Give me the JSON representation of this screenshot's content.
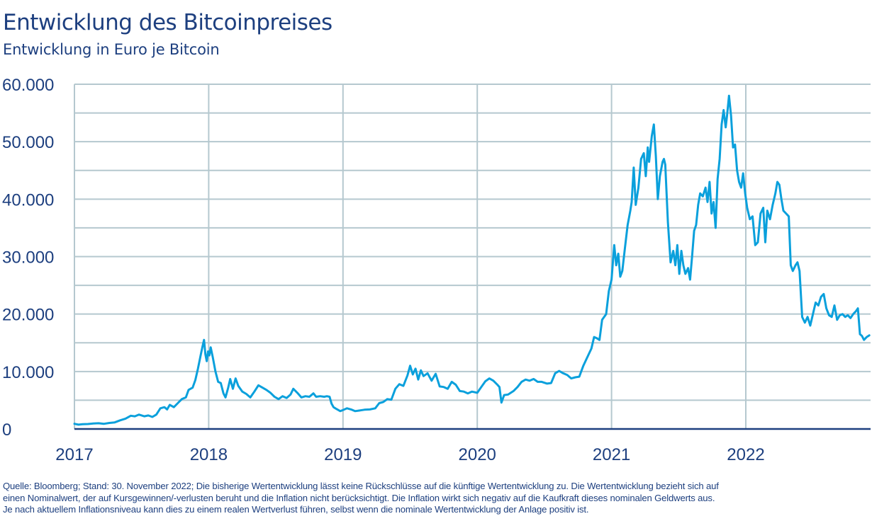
{
  "chart_data": {
    "type": "line",
    "title": "Entwicklung des Bitcoinpreises",
    "subtitle": "Entwicklung in Euro je Bitcoin",
    "xlabel": "",
    "ylabel": "",
    "xlim": [
      2017.0,
      2022.92
    ],
    "ylim": [
      0,
      60000
    ],
    "y_ticks": [
      0,
      10000,
      20000,
      30000,
      40000,
      50000,
      60000
    ],
    "y_tick_labels": [
      "0",
      "10.000",
      "20.000",
      "30.000",
      "40.000",
      "50.000",
      "60.000"
    ],
    "y_gridlines": [
      5000,
      10000,
      15000,
      20000,
      25000,
      30000,
      35000,
      40000,
      45000,
      50000,
      55000,
      60000
    ],
    "x_ticks": [
      2017,
      2018,
      2019,
      2020,
      2021,
      2022
    ],
    "x_tick_labels": [
      "2017",
      "2018",
      "2019",
      "2020",
      "2021",
      "2022"
    ],
    "grid": true,
    "legend": "none",
    "series": [
      {
        "name": "Bitcoin (EUR)",
        "color": "#0aa0dc",
        "points": [
          [
            2017.0,
            900
          ],
          [
            2017.03,
            750
          ],
          [
            2017.06,
            820
          ],
          [
            2017.1,
            860
          ],
          [
            2017.14,
            950
          ],
          [
            2017.18,
            1000
          ],
          [
            2017.22,
            900
          ],
          [
            2017.26,
            1050
          ],
          [
            2017.3,
            1150
          ],
          [
            2017.34,
            1500
          ],
          [
            2017.38,
            1800
          ],
          [
            2017.42,
            2300
          ],
          [
            2017.45,
            2200
          ],
          [
            2017.48,
            2500
          ],
          [
            2017.52,
            2200
          ],
          [
            2017.55,
            2350
          ],
          [
            2017.58,
            2100
          ],
          [
            2017.61,
            2500
          ],
          [
            2017.64,
            3600
          ],
          [
            2017.67,
            3800
          ],
          [
            2017.69,
            3400
          ],
          [
            2017.71,
            4200
          ],
          [
            2017.74,
            3800
          ],
          [
            2017.77,
            4500
          ],
          [
            2017.8,
            5200
          ],
          [
            2017.83,
            5500
          ],
          [
            2017.85,
            6800
          ],
          [
            2017.88,
            7200
          ],
          [
            2017.9,
            8500
          ],
          [
            2017.92,
            10500
          ],
          [
            2017.94,
            12800
          ],
          [
            2017.955,
            14500
          ],
          [
            2017.965,
            15500
          ],
          [
            2017.975,
            13000
          ],
          [
            2017.985,
            11800
          ],
          [
            2017.995,
            13500
          ],
          [
            2018.005,
            12800
          ],
          [
            2018.015,
            14200
          ],
          [
            2018.03,
            12500
          ],
          [
            2018.05,
            10000
          ],
          [
            2018.07,
            8200
          ],
          [
            2018.09,
            8000
          ],
          [
            2018.11,
            6200
          ],
          [
            2018.125,
            5500
          ],
          [
            2018.145,
            7200
          ],
          [
            2018.16,
            8700
          ],
          [
            2018.18,
            7000
          ],
          [
            2018.2,
            8800
          ],
          [
            2018.22,
            7500
          ],
          [
            2018.25,
            6500
          ],
          [
            2018.28,
            6100
          ],
          [
            2018.31,
            5500
          ],
          [
            2018.34,
            6500
          ],
          [
            2018.37,
            7600
          ],
          [
            2018.4,
            7200
          ],
          [
            2018.43,
            6800
          ],
          [
            2018.46,
            6300
          ],
          [
            2018.49,
            5600
          ],
          [
            2018.52,
            5200
          ],
          [
            2018.55,
            5700
          ],
          [
            2018.58,
            5400
          ],
          [
            2018.61,
            6000
          ],
          [
            2018.63,
            7000
          ],
          [
            2018.66,
            6300
          ],
          [
            2018.69,
            5500
          ],
          [
            2018.72,
            5700
          ],
          [
            2018.75,
            5600
          ],
          [
            2018.78,
            6200
          ],
          [
            2018.8,
            5600
          ],
          [
            2018.83,
            5700
          ],
          [
            2018.86,
            5600
          ],
          [
            2018.88,
            5700
          ],
          [
            2018.9,
            5600
          ],
          [
            2018.915,
            4400
          ],
          [
            2018.93,
            3800
          ],
          [
            2018.95,
            3500
          ],
          [
            2018.98,
            3100
          ],
          [
            2019.0,
            3300
          ],
          [
            2019.03,
            3600
          ],
          [
            2019.06,
            3400
          ],
          [
            2019.09,
            3100
          ],
          [
            2019.12,
            3200
          ],
          [
            2019.16,
            3350
          ],
          [
            2019.2,
            3400
          ],
          [
            2019.24,
            3600
          ],
          [
            2019.27,
            4500
          ],
          [
            2019.3,
            4700
          ],
          [
            2019.33,
            5200
          ],
          [
            2019.36,
            5100
          ],
          [
            2019.39,
            7000
          ],
          [
            2019.42,
            7800
          ],
          [
            2019.45,
            7500
          ],
          [
            2019.48,
            9300
          ],
          [
            2019.5,
            11000
          ],
          [
            2019.52,
            9500
          ],
          [
            2019.54,
            10500
          ],
          [
            2019.56,
            8600
          ],
          [
            2019.58,
            10200
          ],
          [
            2019.6,
            9200
          ],
          [
            2019.63,
            9700
          ],
          [
            2019.66,
            8400
          ],
          [
            2019.69,
            9600
          ],
          [
            2019.72,
            7400
          ],
          [
            2019.75,
            7300
          ],
          [
            2019.78,
            7000
          ],
          [
            2019.81,
            8200
          ],
          [
            2019.84,
            7700
          ],
          [
            2019.87,
            6600
          ],
          [
            2019.9,
            6500
          ],
          [
            2019.93,
            6200
          ],
          [
            2019.96,
            6500
          ],
          [
            2020.0,
            6300
          ],
          [
            2020.03,
            7300
          ],
          [
            2020.06,
            8300
          ],
          [
            2020.09,
            8800
          ],
          [
            2020.12,
            8400
          ],
          [
            2020.15,
            7700
          ],
          [
            2020.165,
            7300
          ],
          [
            2020.18,
            4600
          ],
          [
            2020.2,
            5900
          ],
          [
            2020.23,
            6000
          ],
          [
            2020.27,
            6600
          ],
          [
            2020.3,
            7300
          ],
          [
            2020.33,
            8200
          ],
          [
            2020.36,
            8600
          ],
          [
            2020.39,
            8400
          ],
          [
            2020.42,
            8700
          ],
          [
            2020.45,
            8200
          ],
          [
            2020.48,
            8200
          ],
          [
            2020.52,
            7900
          ],
          [
            2020.55,
            8000
          ],
          [
            2020.58,
            9700
          ],
          [
            2020.61,
            10100
          ],
          [
            2020.64,
            9700
          ],
          [
            2020.67,
            9400
          ],
          [
            2020.7,
            8800
          ],
          [
            2020.73,
            9000
          ],
          [
            2020.76,
            9100
          ],
          [
            2020.79,
            11000
          ],
          [
            2020.82,
            12500
          ],
          [
            2020.85,
            14000
          ],
          [
            2020.87,
            16000
          ],
          [
            2020.89,
            15800
          ],
          [
            2020.91,
            15500
          ],
          [
            2020.93,
            19000
          ],
          [
            2020.96,
            20000
          ],
          [
            2020.98,
            24000
          ],
          [
            2021.0,
            26000
          ],
          [
            2021.02,
            32000
          ],
          [
            2021.035,
            28500
          ],
          [
            2021.05,
            30500
          ],
          [
            2021.065,
            26500
          ],
          [
            2021.08,
            27500
          ],
          [
            2021.1,
            31500
          ],
          [
            2021.12,
            35500
          ],
          [
            2021.14,
            38000
          ],
          [
            2021.15,
            39500
          ],
          [
            2021.165,
            45500
          ],
          [
            2021.18,
            39000
          ],
          [
            2021.2,
            42000
          ],
          [
            2021.22,
            47000
          ],
          [
            2021.24,
            48000
          ],
          [
            2021.255,
            44000
          ],
          [
            2021.27,
            49000
          ],
          [
            2021.28,
            46500
          ],
          [
            2021.3,
            51000
          ],
          [
            2021.315,
            53000
          ],
          [
            2021.33,
            47500
          ],
          [
            2021.345,
            40000
          ],
          [
            2021.36,
            44000
          ],
          [
            2021.38,
            46500
          ],
          [
            2021.39,
            47000
          ],
          [
            2021.4,
            46000
          ],
          [
            2021.42,
            36000
          ],
          [
            2021.44,
            29000
          ],
          [
            2021.46,
            31000
          ],
          [
            2021.475,
            28500
          ],
          [
            2021.49,
            32000
          ],
          [
            2021.505,
            27000
          ],
          [
            2021.52,
            31000
          ],
          [
            2021.535,
            28500
          ],
          [
            2021.55,
            27000
          ],
          [
            2021.57,
            28000
          ],
          [
            2021.585,
            26000
          ],
          [
            2021.6,
            30000
          ],
          [
            2021.615,
            34500
          ],
          [
            2021.63,
            35500
          ],
          [
            2021.645,
            39000
          ],
          [
            2021.66,
            41000
          ],
          [
            2021.68,
            40500
          ],
          [
            2021.7,
            42000
          ],
          [
            2021.715,
            39500
          ],
          [
            2021.73,
            43000
          ],
          [
            2021.745,
            37500
          ],
          [
            2021.76,
            39500
          ],
          [
            2021.775,
            35000
          ],
          [
            2021.79,
            43500
          ],
          [
            2021.805,
            47000
          ],
          [
            2021.82,
            53000
          ],
          [
            2021.835,
            55500
          ],
          [
            2021.85,
            52500
          ],
          [
            2021.86,
            54500
          ],
          [
            2021.875,
            58000
          ],
          [
            2021.89,
            54500
          ],
          [
            2021.905,
            49000
          ],
          [
            2021.92,
            49500
          ],
          [
            2021.935,
            45000
          ],
          [
            2021.95,
            43000
          ],
          [
            2021.965,
            42000
          ],
          [
            2021.98,
            44500
          ],
          [
            2021.995,
            41000
          ],
          [
            2022.01,
            38500
          ],
          [
            2022.03,
            36500
          ],
          [
            2022.05,
            37000
          ],
          [
            2022.07,
            32000
          ],
          [
            2022.09,
            32500
          ],
          [
            2022.11,
            37500
          ],
          [
            2022.13,
            38500
          ],
          [
            2022.145,
            32500
          ],
          [
            2022.16,
            38000
          ],
          [
            2022.18,
            36500
          ],
          [
            2022.2,
            39000
          ],
          [
            2022.22,
            41000
          ],
          [
            2022.235,
            43000
          ],
          [
            2022.25,
            42500
          ],
          [
            2022.265,
            40000
          ],
          [
            2022.28,
            38000
          ],
          [
            2022.3,
            37500
          ],
          [
            2022.32,
            37000
          ],
          [
            2022.335,
            28500
          ],
          [
            2022.35,
            27500
          ],
          [
            2022.37,
            28500
          ],
          [
            2022.385,
            29000
          ],
          [
            2022.4,
            27500
          ],
          [
            2022.42,
            19500
          ],
          [
            2022.44,
            18500
          ],
          [
            2022.46,
            19500
          ],
          [
            2022.48,
            18000
          ],
          [
            2022.5,
            20000
          ],
          [
            2022.52,
            22000
          ],
          [
            2022.54,
            21500
          ],
          [
            2022.56,
            23000
          ],
          [
            2022.58,
            23500
          ],
          [
            2022.6,
            21000
          ],
          [
            2022.62,
            19800
          ],
          [
            2022.64,
            19500
          ],
          [
            2022.66,
            21500
          ],
          [
            2022.68,
            19000
          ],
          [
            2022.7,
            19800
          ],
          [
            2022.72,
            20000
          ],
          [
            2022.74,
            19500
          ],
          [
            2022.76,
            19800
          ],
          [
            2022.78,
            19300
          ],
          [
            2022.8,
            20000
          ],
          [
            2022.82,
            20500
          ],
          [
            2022.835,
            21000
          ],
          [
            2022.85,
            16500
          ],
          [
            2022.865,
            16200
          ],
          [
            2022.88,
            15500
          ],
          [
            2022.9,
            16000
          ],
          [
            2022.92,
            16300
          ]
        ]
      }
    ]
  },
  "footer": {
    "line1": "Quelle: Bloomberg; Stand: 30. November 2022; Die bisherige Wertentwicklung lässt keine Rückschlüsse auf die künftige Wertentwicklung zu. Die Wertentwicklung bezieht sich auf",
    "line2": "einen Nominalwert, der auf Kursgewinnen/-verlusten beruht und die Inflation nicht berücksichtigt. Die Inflation wirkt sich negativ auf die Kaufkraft dieses nominalen Geldwerts aus.",
    "line3": "Je nach aktuellem Inflationsniveau kann dies zu einem realen Wertverlust führen, selbst wenn die nominale Wertentwicklung der Anlage positiv ist."
  }
}
